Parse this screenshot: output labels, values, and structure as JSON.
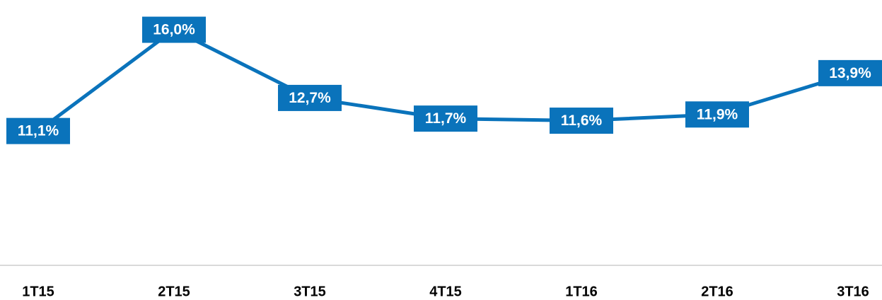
{
  "chart_data": {
    "type": "line",
    "categories": [
      "1T15",
      "2T15",
      "3T15",
      "4T15",
      "1T16",
      "2T16",
      "3T16"
    ],
    "series": [
      {
        "color": "#0a73bb",
        "values": [
          11.1,
          16.0,
          12.7,
          11.7,
          11.6,
          11.9,
          13.9
        ],
        "value_labels": [
          "11,1%",
          "16,0%",
          "12,7%",
          "11,7%",
          "11,6%",
          "11,9%",
          "13,9%"
        ]
      }
    ],
    "ylim": [
      4.6,
      17.2
    ]
  }
}
